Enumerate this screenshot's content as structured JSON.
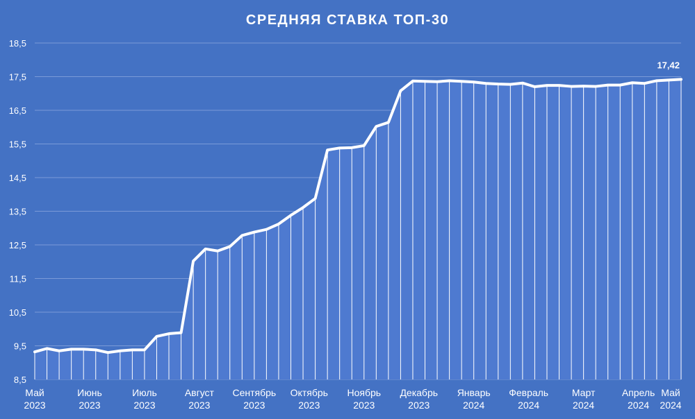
{
  "chart_data": {
    "type": "area",
    "title": "СРЕДНЯЯ СТАВКА ТОП-30",
    "xlabel": "",
    "ylabel": "",
    "ylim": [
      8.5,
      18.5
    ],
    "y_ticks": [
      "8,5",
      "9,5",
      "10,5",
      "11,5",
      "12,5",
      "13,5",
      "14,5",
      "15,5",
      "16,5",
      "17,5",
      "18,5"
    ],
    "grid": true,
    "legend": "none",
    "colors": {
      "background": "#4472c4",
      "line": "#ffffff",
      "grid": "#7b9bd8",
      "area": "#4e7ad0"
    },
    "month_labels": [
      {
        "month": "Май",
        "year": "2023",
        "index": 0
      },
      {
        "month": "Июнь",
        "year": "2023",
        "index": 4.5
      },
      {
        "month": "Июль",
        "year": "2023",
        "index": 9
      },
      {
        "month": "Август",
        "year": "2023",
        "index": 13.5
      },
      {
        "month": "Сентябрь",
        "year": "2023",
        "index": 18
      },
      {
        "month": "Октябрь",
        "year": "2023",
        "index": 22.5
      },
      {
        "month": "Ноябрь",
        "year": "2023",
        "index": 27
      },
      {
        "month": "Декабрь",
        "year": "2023",
        "index": 31.5
      },
      {
        "month": "Январь",
        "year": "2024",
        "index": 36
      },
      {
        "month": "Февраль",
        "year": "2024",
        "index": 40.5
      },
      {
        "month": "Март",
        "year": "2024",
        "index": 45
      },
      {
        "month": "Апрель",
        "year": "2024",
        "index": 49.5
      },
      {
        "month": "Май",
        "year": "2024",
        "index": 54
      }
    ],
    "values": [
      9.32,
      9.42,
      9.35,
      9.4,
      9.4,
      9.38,
      9.3,
      9.35,
      9.38,
      9.38,
      9.78,
      9.86,
      9.89,
      12.02,
      12.38,
      12.32,
      12.45,
      12.78,
      12.88,
      12.96,
      13.12,
      13.38,
      13.61,
      13.88,
      15.32,
      15.38,
      15.39,
      15.45,
      16.02,
      16.14,
      17.08,
      17.37,
      17.36,
      17.35,
      17.38,
      17.36,
      17.34,
      17.3,
      17.28,
      17.27,
      17.31,
      17.2,
      17.24,
      17.24,
      17.21,
      17.22,
      17.21,
      17.25,
      17.25,
      17.32,
      17.3,
      17.38,
      17.4,
      17.42
    ],
    "last_label": "17,42"
  }
}
